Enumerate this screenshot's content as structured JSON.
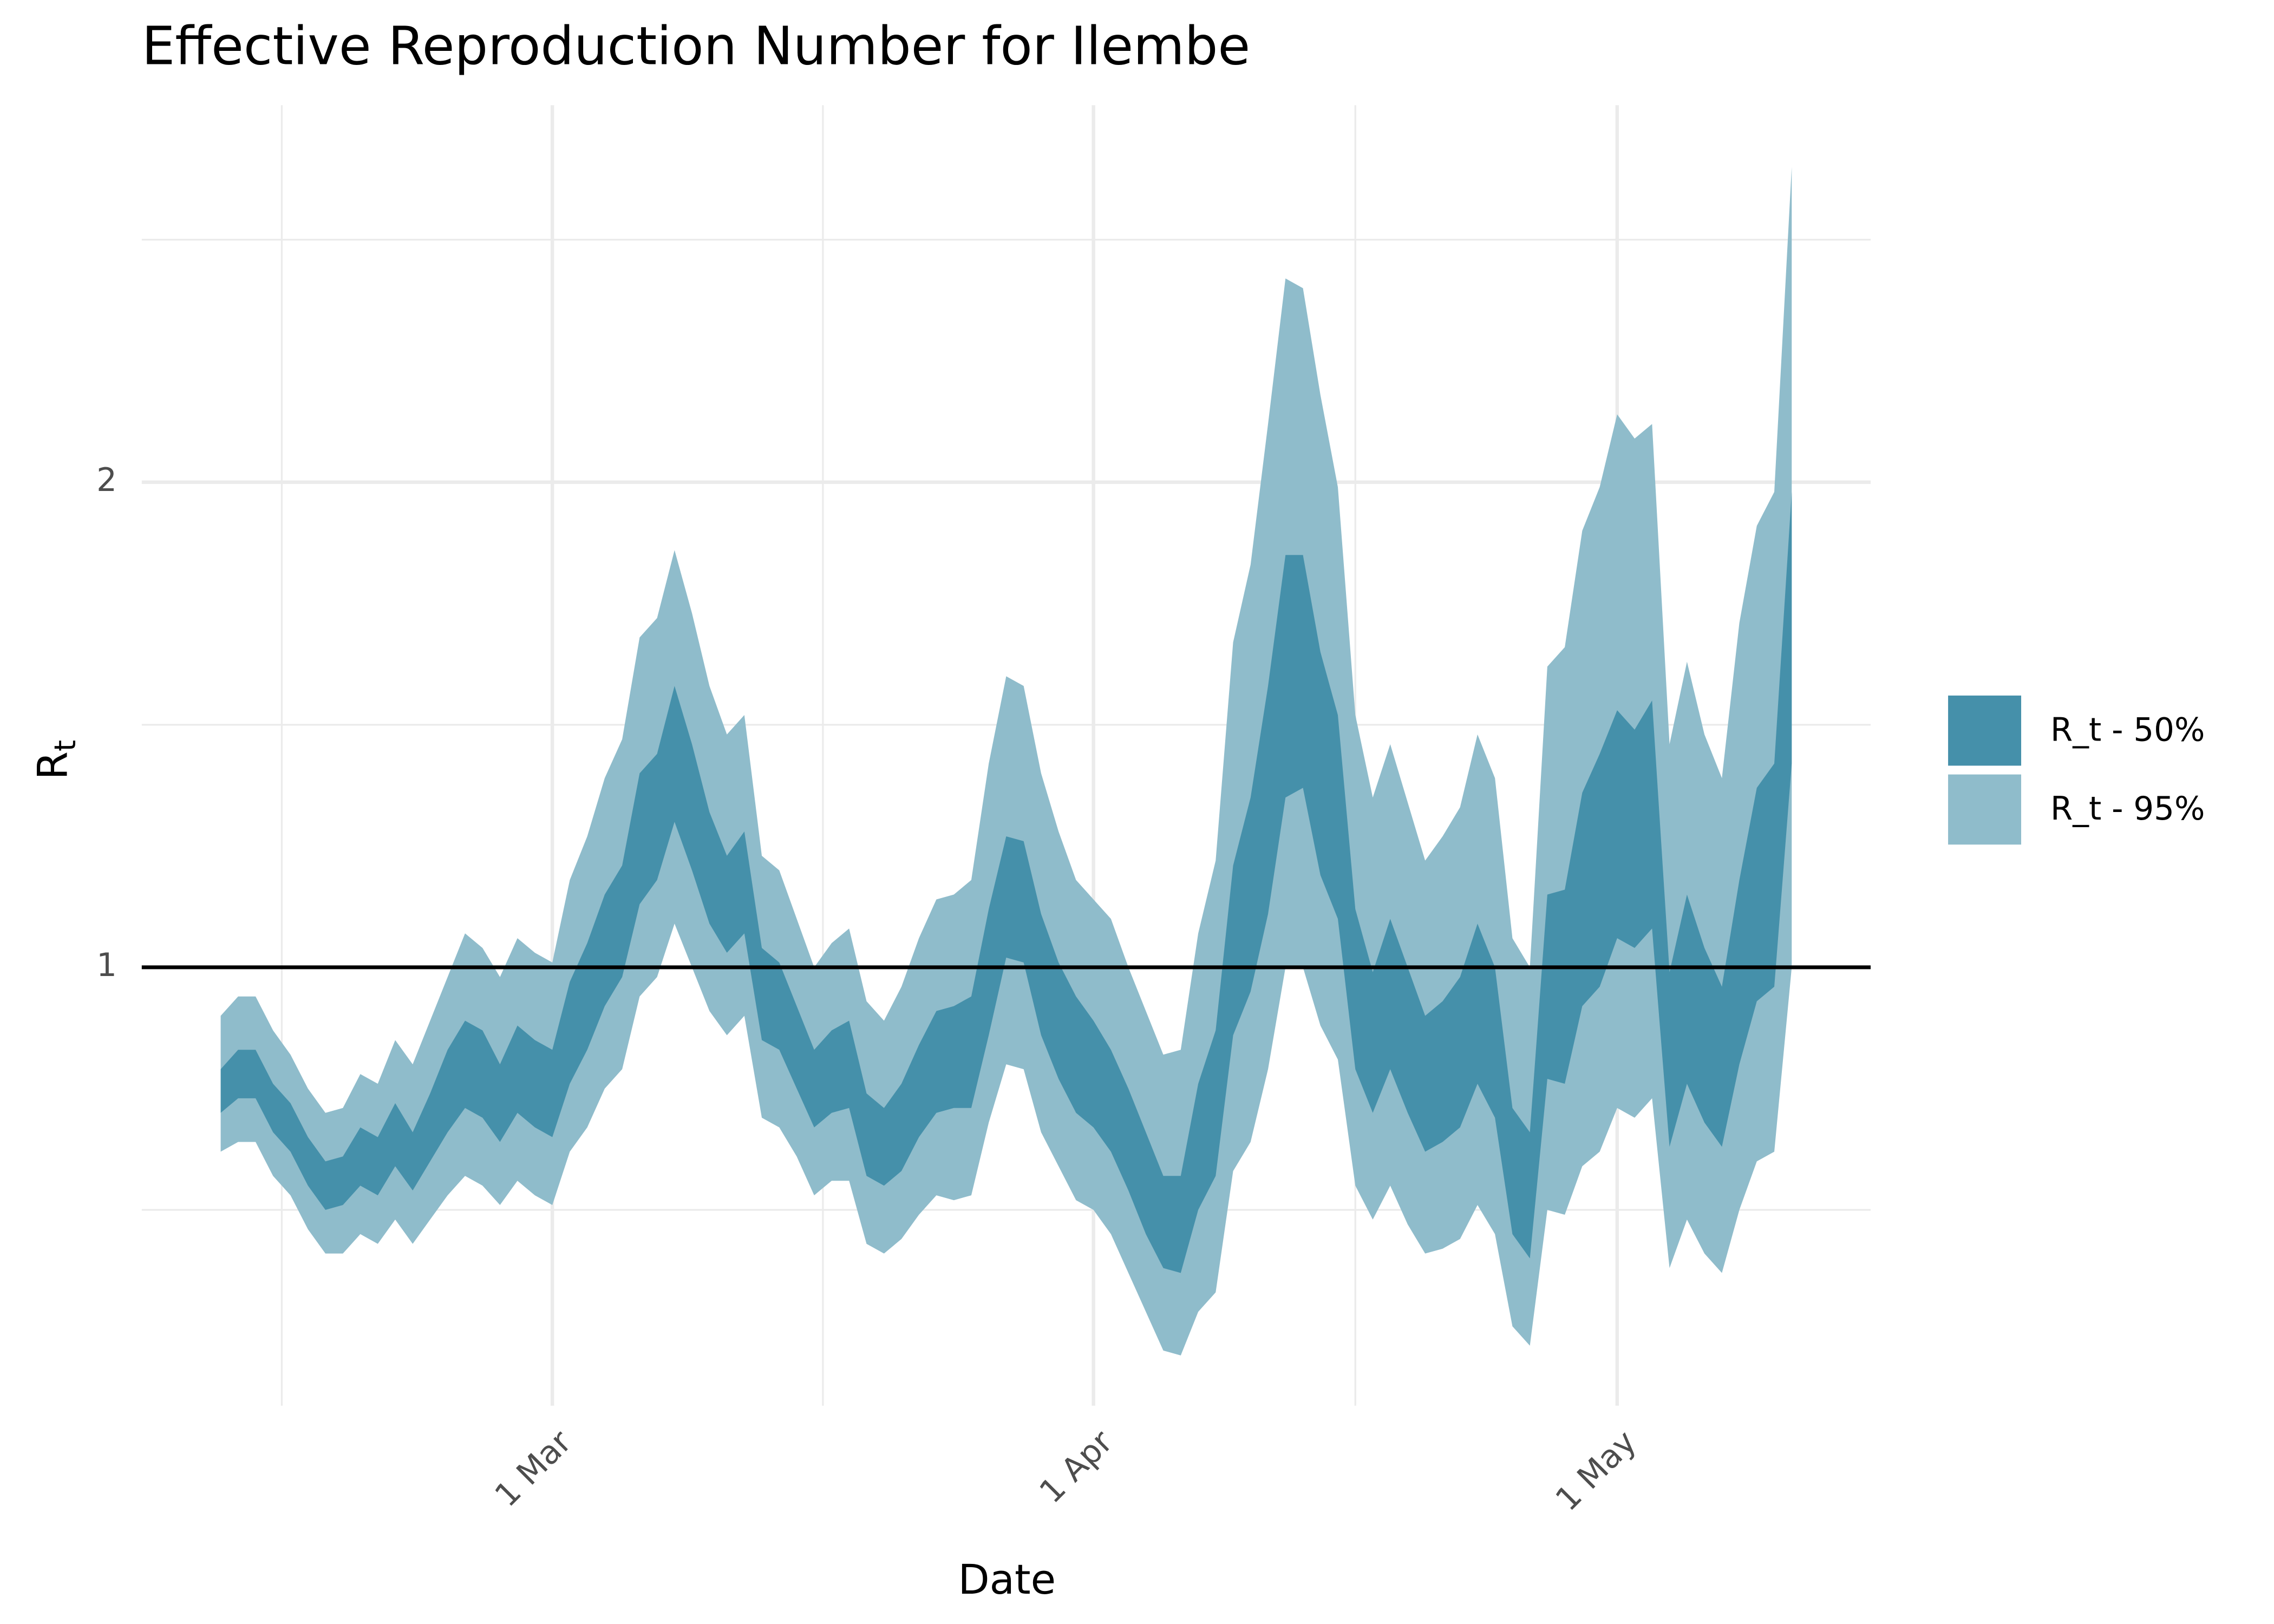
{
  "chart_data": {
    "type": "ribbon",
    "title": "Effective Reproduction Number for Ilembe",
    "xlabel": "Date",
    "ylabel": {
      "main": "R",
      "sub": "t"
    },
    "x": [
      "10 Feb",
      "11 Feb",
      "12 Feb",
      "13 Feb",
      "14 Feb",
      "15 Feb",
      "16 Feb",
      "17 Feb",
      "18 Feb",
      "19 Feb",
      "20 Feb",
      "21 Feb",
      "22 Feb",
      "23 Feb",
      "24 Feb",
      "25 Feb",
      "26 Feb",
      "27 Feb",
      "28 Feb",
      "1 Mar",
      "2 Mar",
      "3 Mar",
      "4 Mar",
      "5 Mar",
      "6 Mar",
      "7 Mar",
      "8 Mar",
      "9 Mar",
      "10 Mar",
      "11 Mar",
      "12 Mar",
      "13 Mar",
      "14 Mar",
      "15 Mar",
      "16 Mar",
      "17 Mar",
      "18 Mar",
      "19 Mar",
      "20 Mar",
      "21 Mar",
      "22 Mar",
      "23 Mar",
      "24 Mar",
      "25 Mar",
      "26 Mar",
      "27 Mar",
      "28 Mar",
      "29 Mar",
      "30 Mar",
      "31 Mar",
      "1 Apr",
      "2 Apr",
      "3 Apr",
      "4 Apr",
      "5 Apr",
      "6 Apr",
      "7 Apr",
      "8 Apr",
      "9 Apr",
      "10 Apr",
      "11 Apr",
      "12 Apr",
      "13 Apr",
      "14 Apr",
      "15 Apr",
      "16 Apr",
      "17 Apr",
      "18 Apr",
      "19 Apr",
      "20 Apr",
      "21 Apr",
      "22 Apr",
      "23 Apr",
      "24 Apr",
      "25 Apr",
      "26 Apr",
      "27 Apr",
      "28 Apr",
      "29 Apr",
      "30 Apr",
      "1 May",
      "2 May",
      "3 May",
      "4 May",
      "5 May",
      "6 May",
      "7 May",
      "8 May",
      "9 May",
      "10 May",
      "11 May"
    ],
    "series": [
      {
        "name": "R_t - 95%",
        "color": "#8fbccb",
        "lower": [
          0.62,
          0.64,
          0.64,
          0.57,
          0.53,
          0.46,
          0.41,
          0.41,
          0.45,
          0.43,
          0.48,
          0.43,
          0.48,
          0.53,
          0.57,
          0.55,
          0.51,
          0.56,
          0.53,
          0.51,
          0.62,
          0.67,
          0.75,
          0.79,
          0.94,
          0.98,
          1.09,
          1.0,
          0.91,
          0.86,
          0.9,
          0.69,
          0.67,
          0.61,
          0.53,
          0.56,
          0.56,
          0.43,
          0.41,
          0.44,
          0.49,
          0.53,
          0.52,
          0.53,
          0.68,
          0.8,
          0.79,
          0.66,
          0.59,
          0.52,
          0.5,
          0.45,
          0.37,
          0.29,
          0.21,
          0.2,
          0.29,
          0.33,
          0.58,
          0.64,
          0.79,
          1.0,
          1.0,
          0.88,
          0.81,
          0.55,
          0.48,
          0.55,
          0.47,
          0.41,
          0.42,
          0.44,
          0.51,
          0.45,
          0.26,
          0.22,
          0.5,
          0.49,
          0.59,
          0.62,
          0.71,
          0.69,
          0.73,
          0.38,
          0.48,
          0.41,
          0.37,
          0.5,
          0.6,
          0.62,
          1.0
        ],
        "upper": [
          0.9,
          0.94,
          0.94,
          0.87,
          0.82,
          0.75,
          0.7,
          0.71,
          0.78,
          0.76,
          0.85,
          0.8,
          0.89,
          0.98,
          1.07,
          1.04,
          0.98,
          1.06,
          1.03,
          1.01,
          1.18,
          1.27,
          1.39,
          1.47,
          1.68,
          1.72,
          1.86,
          1.73,
          1.58,
          1.48,
          1.52,
          1.23,
          1.2,
          1.1,
          1.0,
          1.05,
          1.08,
          0.93,
          0.89,
          0.96,
          1.06,
          1.14,
          1.15,
          1.18,
          1.42,
          1.6,
          1.58,
          1.4,
          1.28,
          1.18,
          1.14,
          1.1,
          1.0,
          0.91,
          0.82,
          0.83,
          1.07,
          1.22,
          1.67,
          1.83,
          2.12,
          2.42,
          2.4,
          2.18,
          1.99,
          1.52,
          1.35,
          1.46,
          1.34,
          1.22,
          1.27,
          1.33,
          1.48,
          1.39,
          1.06,
          1.0,
          1.62,
          1.66,
          1.9,
          1.99,
          2.14,
          2.09,
          2.12,
          1.46,
          1.63,
          1.48,
          1.39,
          1.71,
          1.91,
          1.98,
          2.65
        ]
      },
      {
        "name": "R_t - 50%",
        "color": "#4590aa",
        "lower": [
          0.7,
          0.73,
          0.73,
          0.66,
          0.62,
          0.55,
          0.5,
          0.51,
          0.55,
          0.53,
          0.59,
          0.54,
          0.6,
          0.66,
          0.71,
          0.69,
          0.64,
          0.7,
          0.67,
          0.65,
          0.76,
          0.83,
          0.92,
          0.98,
          1.13,
          1.18,
          1.3,
          1.2,
          1.09,
          1.03,
          1.07,
          0.85,
          0.83,
          0.75,
          0.67,
          0.7,
          0.71,
          0.57,
          0.55,
          0.58,
          0.65,
          0.7,
          0.71,
          0.71,
          0.86,
          1.02,
          1.01,
          0.86,
          0.77,
          0.7,
          0.67,
          0.62,
          0.54,
          0.45,
          0.38,
          0.37,
          0.5,
          0.57,
          0.86,
          0.95,
          1.11,
          1.35,
          1.37,
          1.19,
          1.1,
          0.79,
          0.7,
          0.79,
          0.7,
          0.62,
          0.64,
          0.67,
          0.76,
          0.69,
          0.45,
          0.4,
          0.77,
          0.76,
          0.92,
          0.96,
          1.06,
          1.04,
          1.08,
          0.63,
          0.76,
          0.68,
          0.63,
          0.8,
          0.93,
          0.96,
          1.42
        ],
        "upper": [
          0.79,
          0.83,
          0.83,
          0.76,
          0.72,
          0.65,
          0.6,
          0.61,
          0.67,
          0.65,
          0.72,
          0.66,
          0.74,
          0.83,
          0.89,
          0.87,
          0.8,
          0.88,
          0.85,
          0.83,
          0.97,
          1.05,
          1.15,
          1.21,
          1.4,
          1.44,
          1.58,
          1.46,
          1.32,
          1.23,
          1.28,
          1.04,
          1.01,
          0.92,
          0.83,
          0.87,
          0.89,
          0.74,
          0.71,
          0.76,
          0.84,
          0.91,
          0.92,
          0.94,
          1.12,
          1.27,
          1.26,
          1.11,
          1.01,
          0.94,
          0.89,
          0.83,
          0.75,
          0.66,
          0.57,
          0.57,
          0.76,
          0.87,
          1.21,
          1.35,
          1.58,
          1.85,
          1.85,
          1.65,
          1.52,
          1.12,
          0.99,
          1.1,
          1.0,
          0.9,
          0.93,
          0.98,
          1.09,
          1.0,
          0.71,
          0.66,
          1.15,
          1.16,
          1.36,
          1.44,
          1.53,
          1.49,
          1.55,
          0.99,
          1.15,
          1.04,
          0.96,
          1.18,
          1.37,
          1.42,
          1.98
        ]
      }
    ],
    "xticks": [
      "1 Mar",
      "1 Apr",
      "1 May"
    ],
    "ylim": [
      0.2,
      2.7
    ],
    "yticks": [
      1,
      2
    ],
    "minor_yticks": [
      0.5,
      1.5,
      2.5
    ],
    "hline": 1,
    "grid": true,
    "legend": "right"
  }
}
